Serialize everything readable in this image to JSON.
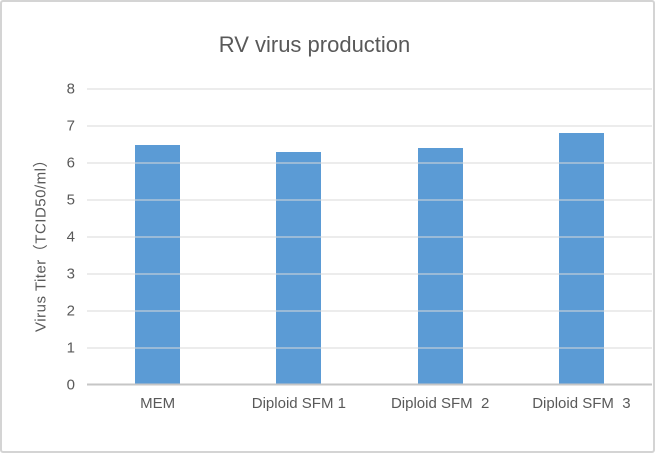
{
  "chart_data": {
    "type": "bar",
    "title": "RV virus production",
    "categories": [
      "MEM",
      "Diploid SFM 1",
      "Diploid SFM  2",
      "Diploid SFM  3"
    ],
    "values": [
      6.5,
      6.3,
      6.4,
      6.8
    ],
    "xlabel": "",
    "ylabel": "Virus Titer（TCID50/ml）",
    "ylim": [
      0,
      8
    ],
    "ytick_step": 1,
    "yticks": [
      0,
      1,
      2,
      3,
      4,
      5,
      6,
      7,
      8
    ],
    "grid": true,
    "legend": false,
    "colors": {
      "bar": "#5b9bd5",
      "text": "#595959",
      "gridline": "#d9d9d9",
      "axis_line": "#c6c6c6",
      "frame_border": "#d4d4d4",
      "background": "#ffffff"
    }
  }
}
